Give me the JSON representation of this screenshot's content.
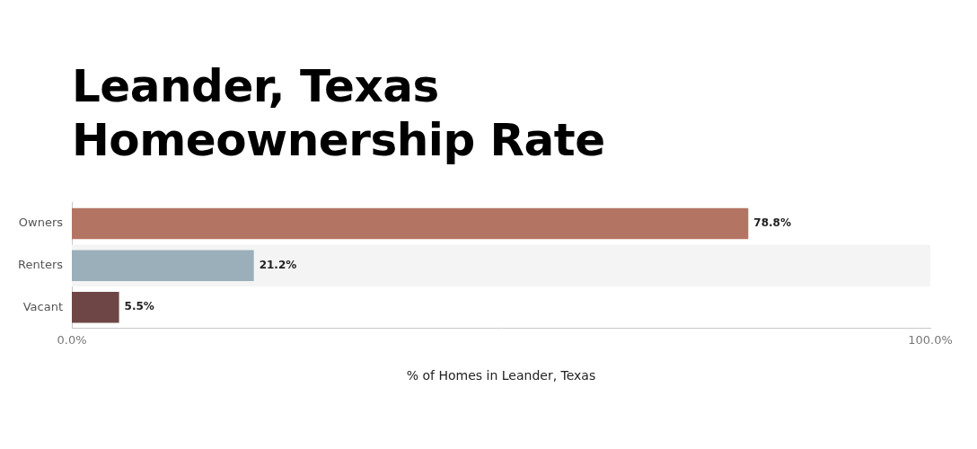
{
  "chart_data": {
    "type": "bar",
    "orientation": "horizontal",
    "title": [
      "Leander, Texas",
      "Homeownership Rate"
    ],
    "x_label": "% of Homes in Leander, Texas",
    "categories": [
      "Owners",
      "Renters",
      "Vacant"
    ],
    "values": [
      78.8,
      21.2,
      5.5
    ],
    "value_labels": [
      "78.8%",
      "21.2%",
      "5.5%"
    ],
    "colors": [
      "#b47463",
      "#9aafba",
      "#6f4646"
    ],
    "xlim": [
      0,
      100
    ],
    "xticks": [
      {
        "value": 0,
        "label": "0.0%"
      },
      {
        "value": 100,
        "label": "100.0%"
      }
    ],
    "grid": false,
    "data_labels": true
  }
}
